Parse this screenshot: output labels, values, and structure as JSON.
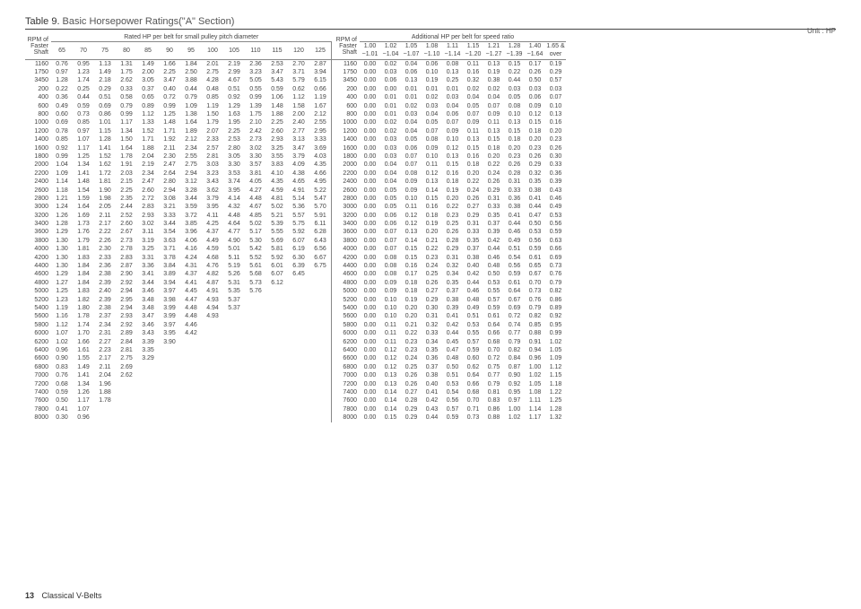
{
  "title_label": "Table 9.",
  "title_text": "Basic Horsepower Ratings(\"A\" Section)",
  "unit_text": "Unit : HP",
  "footer_page": "13",
  "footer_text": "Classical V-Belts",
  "rpm_header": [
    "RPM of",
    "Faster",
    "Shaft"
  ],
  "left_section_title": "Rated HP per belt for small pulley pitch diameter",
  "right_section_title": "Additional HP per belt for speed ratio",
  "left_cols": [
    "65",
    "70",
    "75",
    "80",
    "85",
    "90",
    "95",
    "100",
    "105",
    "110",
    "115",
    "120",
    "125"
  ],
  "right_cols_top": [
    "1.00",
    "1.02",
    "1.05",
    "1.08",
    "1.11",
    "1.15",
    "1.21",
    "1.28",
    "1.40",
    "1.65 &"
  ],
  "right_cols_bot": [
    "~1.01",
    "~1.04",
    "~1.07",
    "~1.10",
    "~1.14",
    "~1.20",
    "~1.27",
    "~1.39",
    "~1.64",
    "over"
  ],
  "rpms": [
    "1160",
    "1750",
    "3450",
    "200",
    "400",
    "600",
    "800",
    "1000",
    "1200",
    "1400",
    "1600",
    "1800",
    "2000",
    "2200",
    "2400",
    "2600",
    "2800",
    "3000",
    "3200",
    "3400",
    "3600",
    "3800",
    "4000",
    "4200",
    "4400",
    "4600",
    "4800",
    "5000",
    "5200",
    "5400",
    "5600",
    "5800",
    "6000",
    "6200",
    "6400",
    "6600",
    "6800",
    "7000",
    "7200",
    "7400",
    "7600",
    "7800",
    "8000"
  ],
  "left_rows": [
    [
      "0.76",
      "0.95",
      "1.13",
      "1.31",
      "1.49",
      "1.66",
      "1.84",
      "2.01",
      "2.19",
      "2.36",
      "2.53",
      "2.70",
      "2.87"
    ],
    [
      "0.97",
      "1.23",
      "1.49",
      "1.75",
      "2.00",
      "2.25",
      "2.50",
      "2.75",
      "2.99",
      "3.23",
      "3.47",
      "3.71",
      "3.94"
    ],
    [
      "1.28",
      "1.74",
      "2.18",
      "2.62",
      "3.05",
      "3.47",
      "3.88",
      "4.28",
      "4.67",
      "5.05",
      "5.43",
      "5.79",
      "6.15"
    ],
    [
      "0.22",
      "0.25",
      "0.29",
      "0.33",
      "0.37",
      "0.40",
      "0.44",
      "0.48",
      "0.51",
      "0.55",
      "0.59",
      "0.62",
      "0.66"
    ],
    [
      "0.36",
      "0.44",
      "0.51",
      "0.58",
      "0.65",
      "0.72",
      "0.79",
      "0.85",
      "0.92",
      "0.99",
      "1.06",
      "1.12",
      "1.19"
    ],
    [
      "0.49",
      "0.59",
      "0.69",
      "0.79",
      "0.89",
      "0.99",
      "1.09",
      "1.19",
      "1.29",
      "1.39",
      "1.48",
      "1.58",
      "1.67"
    ],
    [
      "0.60",
      "0.73",
      "0.86",
      "0.99",
      "1.12",
      "1.25",
      "1.38",
      "1.50",
      "1.63",
      "1.75",
      "1.88",
      "2.00",
      "2.12"
    ],
    [
      "0.69",
      "0.85",
      "1.01",
      "1.17",
      "1.33",
      "1.48",
      "1.64",
      "1.79",
      "1.95",
      "2.10",
      "2.25",
      "2.40",
      "2.55"
    ],
    [
      "0.78",
      "0.97",
      "1.15",
      "1.34",
      "1.52",
      "1.71",
      "1.89",
      "2.07",
      "2.25",
      "2.42",
      "2.60",
      "2.77",
      "2.95"
    ],
    [
      "0.85",
      "1.07",
      "1.28",
      "1.50",
      "1.71",
      "1.92",
      "2.12",
      "2.33",
      "2.53",
      "2.73",
      "2.93",
      "3.13",
      "3.33"
    ],
    [
      "0.92",
      "1.17",
      "1.41",
      "1.64",
      "1.88",
      "2.11",
      "2.34",
      "2.57",
      "2.80",
      "3.02",
      "3.25",
      "3.47",
      "3.69"
    ],
    [
      "0.99",
      "1.25",
      "1.52",
      "1.78",
      "2.04",
      "2.30",
      "2.55",
      "2.81",
      "3.05",
      "3.30",
      "3.55",
      "3.79",
      "4.03"
    ],
    [
      "1.04",
      "1.34",
      "1.62",
      "1.91",
      "2.19",
      "2.47",
      "2.75",
      "3.03",
      "3.30",
      "3.57",
      "3.83",
      "4.09",
      "4.35"
    ],
    [
      "1.09",
      "1.41",
      "1.72",
      "2.03",
      "2.34",
      "2.64",
      "2.94",
      "3.23",
      "3.53",
      "3.81",
      "4.10",
      "4.38",
      "4.66"
    ],
    [
      "1.14",
      "1.48",
      "1.81",
      "2.15",
      "2.47",
      "2.80",
      "3.12",
      "3.43",
      "3.74",
      "4.05",
      "4.35",
      "4.65",
      "4.95"
    ],
    [
      "1.18",
      "1.54",
      "1.90",
      "2.25",
      "2.60",
      "2.94",
      "3.28",
      "3.62",
      "3.95",
      "4.27",
      "4.59",
      "4.91",
      "5.22"
    ],
    [
      "1.21",
      "1.59",
      "1.98",
      "2.35",
      "2.72",
      "3.08",
      "3.44",
      "3.79",
      "4.14",
      "4.48",
      "4.81",
      "5.14",
      "5.47"
    ],
    [
      "1.24",
      "1.64",
      "2.05",
      "2.44",
      "2.83",
      "3.21",
      "3.59",
      "3.95",
      "4.32",
      "4.67",
      "5.02",
      "5.36",
      "5.70"
    ],
    [
      "1.26",
      "1.69",
      "2.11",
      "2.52",
      "2.93",
      "3.33",
      "3.72",
      "4.11",
      "4.48",
      "4.85",
      "5.21",
      "5.57",
      "5.91"
    ],
    [
      "1.28",
      "1.73",
      "2.17",
      "2.60",
      "3.02",
      "3.44",
      "3.85",
      "4.25",
      "4.64",
      "5.02",
      "5.39",
      "5.75",
      "6.11"
    ],
    [
      "1.29",
      "1.76",
      "2.22",
      "2.67",
      "3.11",
      "3.54",
      "3.96",
      "4.37",
      "4.77",
      "5.17",
      "5.55",
      "5.92",
      "6.28"
    ],
    [
      "1.30",
      "1.79",
      "2.26",
      "2.73",
      "3.19",
      "3.63",
      "4.06",
      "4.49",
      "4.90",
      "5.30",
      "5.69",
      "6.07",
      "6.43"
    ],
    [
      "1.30",
      "1.81",
      "2.30",
      "2.78",
      "3.25",
      "3.71",
      "4.16",
      "4.59",
      "5.01",
      "5.42",
      "5.81",
      "6.19",
      "6.56"
    ],
    [
      "1.30",
      "1.83",
      "2.33",
      "2.83",
      "3.31",
      "3.78",
      "4.24",
      "4.68",
      "5.11",
      "5.52",
      "5.92",
      "6.30",
      "6.67"
    ],
    [
      "1.30",
      "1.84",
      "2.36",
      "2.87",
      "3.36",
      "3.84",
      "4.31",
      "4.76",
      "5.19",
      "5.61",
      "6.01",
      "6.39",
      "6.75"
    ],
    [
      "1.29",
      "1.84",
      "2.38",
      "2.90",
      "3.41",
      "3.89",
      "4.37",
      "4.82",
      "5.26",
      "5.68",
      "6.07",
      "6.45",
      ""
    ],
    [
      "1.27",
      "1.84",
      "2.39",
      "2.92",
      "3.44",
      "3.94",
      "4.41",
      "4.87",
      "5.31",
      "5.73",
      "6.12",
      "",
      ""
    ],
    [
      "1.25",
      "1.83",
      "2.40",
      "2.94",
      "3.46",
      "3.97",
      "4.45",
      "4.91",
      "5.35",
      "5.76",
      "",
      "",
      ""
    ],
    [
      "1.23",
      "1.82",
      "2.39",
      "2.95",
      "3.48",
      "3.98",
      "4.47",
      "4.93",
      "5.37",
      "",
      "",
      "",
      ""
    ],
    [
      "1.19",
      "1.80",
      "2.38",
      "2.94",
      "3.48",
      "3.99",
      "4.48",
      "4.94",
      "5.37",
      "",
      "",
      "",
      ""
    ],
    [
      "1.16",
      "1.78",
      "2.37",
      "2.93",
      "3.47",
      "3.99",
      "4.48",
      "4.93",
      "",
      "",
      "",
      "",
      ""
    ],
    [
      "1.12",
      "1.74",
      "2.34",
      "2.92",
      "3.46",
      "3.97",
      "4.46",
      "",
      "",
      "",
      "",
      "",
      ""
    ],
    [
      "1.07",
      "1.70",
      "2.31",
      "2.89",
      "3.43",
      "3.95",
      "4.42",
      "",
      "",
      "",
      "",
      "",
      ""
    ],
    [
      "1.02",
      "1.66",
      "2.27",
      "2.84",
      "3.39",
      "3.90",
      "",
      "",
      "",
      "",
      "",
      "",
      ""
    ],
    [
      "0.96",
      "1.61",
      "2.23",
      "2.81",
      "3.35",
      "",
      "",
      "",
      "",
      "",
      "",
      "",
      ""
    ],
    [
      "0.90",
      "1.55",
      "2.17",
      "2.75",
      "3.29",
      "",
      "",
      "",
      "",
      "",
      "",
      "",
      ""
    ],
    [
      "0.83",
      "1.49",
      "2.11",
      "2.69",
      "",
      "",
      "",
      "",
      "",
      "",
      "",
      "",
      ""
    ],
    [
      "0.76",
      "1.41",
      "2.04",
      "2.62",
      "",
      "",
      "",
      "",
      "",
      "",
      "",
      "",
      ""
    ],
    [
      "0.68",
      "1.34",
      "1.96",
      "",
      "",
      "",
      "",
      "",
      "",
      "",
      "",
      "",
      ""
    ],
    [
      "0.59",
      "1.26",
      "1.88",
      "",
      "",
      "",
      "",
      "",
      "",
      "",
      "",
      "",
      ""
    ],
    [
      "0.50",
      "1.17",
      "1.78",
      "",
      "",
      "",
      "",
      "",
      "",
      "",
      "",
      "",
      ""
    ],
    [
      "0.41",
      "1.07",
      "",
      "",
      "",
      "",
      "",
      "",
      "",
      "",
      "",
      "",
      ""
    ],
    [
      "0.30",
      "0.96",
      "",
      "",
      "",
      "",
      "",
      "",
      "",
      "",
      "",
      "",
      ""
    ]
  ],
  "right_rows": [
    [
      "0.00",
      "0.02",
      "0.04",
      "0.06",
      "0.08",
      "0.11",
      "0.13",
      "0.15",
      "0.17",
      "0.19"
    ],
    [
      "0.00",
      "0.03",
      "0.06",
      "0.10",
      "0.13",
      "0.16",
      "0.19",
      "0.22",
      "0.26",
      "0.29"
    ],
    [
      "0.00",
      "0.06",
      "0.13",
      "0.19",
      "0.25",
      "0.32",
      "0.38",
      "0.44",
      "0.50",
      "0.57"
    ],
    [
      "0.00",
      "0.00",
      "0.01",
      "0.01",
      "0.01",
      "0.02",
      "0.02",
      "0.03",
      "0.03",
      "0.03"
    ],
    [
      "0.00",
      "0.01",
      "0.01",
      "0.02",
      "0.03",
      "0.04",
      "0.04",
      "0.05",
      "0.06",
      "0.07"
    ],
    [
      "0.00",
      "0.01",
      "0.02",
      "0.03",
      "0.04",
      "0.05",
      "0.07",
      "0.08",
      "0.09",
      "0.10"
    ],
    [
      "0.00",
      "0.01",
      "0.03",
      "0.04",
      "0.06",
      "0.07",
      "0.09",
      "0.10",
      "0.12",
      "0.13"
    ],
    [
      "0.00",
      "0.02",
      "0.04",
      "0.05",
      "0.07",
      "0.09",
      "0.11",
      "0.13",
      "0.15",
      "0.16"
    ],
    [
      "0.00",
      "0.02",
      "0.04",
      "0.07",
      "0.09",
      "0.11",
      "0.13",
      "0.15",
      "0.18",
      "0.20"
    ],
    [
      "0.00",
      "0.03",
      "0.05",
      "0.08",
      "0.10",
      "0.13",
      "0.15",
      "0.18",
      "0.20",
      "0.23"
    ],
    [
      "0.00",
      "0.03",
      "0.06",
      "0.09",
      "0.12",
      "0.15",
      "0.18",
      "0.20",
      "0.23",
      "0.26"
    ],
    [
      "0.00",
      "0.03",
      "0.07",
      "0.10",
      "0.13",
      "0.16",
      "0.20",
      "0.23",
      "0.26",
      "0.30"
    ],
    [
      "0.00",
      "0.04",
      "0.07",
      "0.11",
      "0.15",
      "0.18",
      "0.22",
      "0.26",
      "0.29",
      "0.33"
    ],
    [
      "0.00",
      "0.04",
      "0.08",
      "0.12",
      "0.16",
      "0.20",
      "0.24",
      "0.28",
      "0.32",
      "0.36"
    ],
    [
      "0.00",
      "0.04",
      "0.09",
      "0.13",
      "0.18",
      "0.22",
      "0.26",
      "0.31",
      "0.35",
      "0.39"
    ],
    [
      "0.00",
      "0.05",
      "0.09",
      "0.14",
      "0.19",
      "0.24",
      "0.29",
      "0.33",
      "0.38",
      "0.43"
    ],
    [
      "0.00",
      "0.05",
      "0.10",
      "0.15",
      "0.20",
      "0.26",
      "0.31",
      "0.36",
      "0.41",
      "0.46"
    ],
    [
      "0.00",
      "0.05",
      "0.11",
      "0.16",
      "0.22",
      "0.27",
      "0.33",
      "0.38",
      "0.44",
      "0.49"
    ],
    [
      "0.00",
      "0.06",
      "0.12",
      "0.18",
      "0.23",
      "0.29",
      "0.35",
      "0.41",
      "0.47",
      "0.53"
    ],
    [
      "0.00",
      "0.06",
      "0.12",
      "0.19",
      "0.25",
      "0.31",
      "0.37",
      "0.44",
      "0.50",
      "0.56"
    ],
    [
      "0.00",
      "0.07",
      "0.13",
      "0.20",
      "0.26",
      "0.33",
      "0.39",
      "0.46",
      "0.53",
      "0.59"
    ],
    [
      "0.00",
      "0.07",
      "0.14",
      "0.21",
      "0.28",
      "0.35",
      "0.42",
      "0.49",
      "0.56",
      "0.63"
    ],
    [
      "0.00",
      "0.07",
      "0.15",
      "0.22",
      "0.29",
      "0.37",
      "0.44",
      "0.51",
      "0.59",
      "0.66"
    ],
    [
      "0.00",
      "0.08",
      "0.15",
      "0.23",
      "0.31",
      "0.38",
      "0.46",
      "0.54",
      "0.61",
      "0.69"
    ],
    [
      "0.00",
      "0.08",
      "0.16",
      "0.24",
      "0.32",
      "0.40",
      "0.48",
      "0.56",
      "0.65",
      "0.73"
    ],
    [
      "0.00",
      "0.08",
      "0.17",
      "0.25",
      "0.34",
      "0.42",
      "0.50",
      "0.59",
      "0.67",
      "0.76"
    ],
    [
      "0.00",
      "0.09",
      "0.18",
      "0.26",
      "0.35",
      "0.44",
      "0.53",
      "0.61",
      "0.70",
      "0.79"
    ],
    [
      "0.00",
      "0.09",
      "0.18",
      "0.27",
      "0.37",
      "0.46",
      "0.55",
      "0.64",
      "0.73",
      "0.82"
    ],
    [
      "0.00",
      "0.10",
      "0.19",
      "0.29",
      "0.38",
      "0.48",
      "0.57",
      "0.67",
      "0.76",
      "0.86"
    ],
    [
      "0.00",
      "0.10",
      "0.20",
      "0.30",
      "0.39",
      "0.49",
      "0.59",
      "0.69",
      "0.79",
      "0.89"
    ],
    [
      "0.00",
      "0.10",
      "0.20",
      "0.31",
      "0.41",
      "0.51",
      "0.61",
      "0.72",
      "0.82",
      "0.92"
    ],
    [
      "0.00",
      "0.11",
      "0.21",
      "0.32",
      "0.42",
      "0.53",
      "0.64",
      "0.74",
      "0.85",
      "0.95"
    ],
    [
      "0.00",
      "0.11",
      "0.22",
      "0.33",
      "0.44",
      "0.55",
      "0.66",
      "0.77",
      "0.88",
      "0.99"
    ],
    [
      "0.00",
      "0.11",
      "0.23",
      "0.34",
      "0.45",
      "0.57",
      "0.68",
      "0.79",
      "0.91",
      "1.02"
    ],
    [
      "0.00",
      "0.12",
      "0.23",
      "0.35",
      "0.47",
      "0.59",
      "0.70",
      "0.82",
      "0.94",
      "1.05"
    ],
    [
      "0.00",
      "0.12",
      "0.24",
      "0.36",
      "0.48",
      "0.60",
      "0.72",
      "0.84",
      "0.96",
      "1.09"
    ],
    [
      "0.00",
      "0.12",
      "0.25",
      "0.37",
      "0.50",
      "0.62",
      "0.75",
      "0.87",
      "1.00",
      "1.12"
    ],
    [
      "0.00",
      "0.13",
      "0.26",
      "0.38",
      "0.51",
      "0.64",
      "0.77",
      "0.90",
      "1.02",
      "1.15"
    ],
    [
      "0.00",
      "0.13",
      "0.26",
      "0.40",
      "0.53",
      "0.66",
      "0.79",
      "0.92",
      "1.05",
      "1.18"
    ],
    [
      "0.00",
      "0.14",
      "0.27",
      "0.41",
      "0.54",
      "0.68",
      "0.81",
      "0.95",
      "1.08",
      "1.22"
    ],
    [
      "0.00",
      "0.14",
      "0.28",
      "0.42",
      "0.56",
      "0.70",
      "0.83",
      "0.97",
      "1.11",
      "1.25"
    ],
    [
      "0.00",
      "0.14",
      "0.29",
      "0.43",
      "0.57",
      "0.71",
      "0.86",
      "1.00",
      "1.14",
      "1.28"
    ],
    [
      "0.00",
      "0.15",
      "0.29",
      "0.44",
      "0.59",
      "0.73",
      "0.88",
      "1.02",
      "1.17",
      "1.32"
    ]
  ]
}
